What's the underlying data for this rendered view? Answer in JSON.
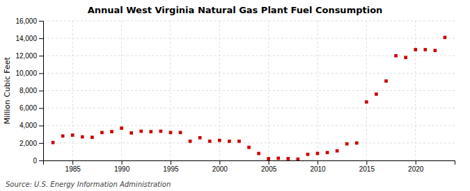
{
  "chart_data": {
    "type": "scatter",
    "title": "Annual West Virginia Natural Gas Plant Fuel Consumption",
    "ylabel": "Million Cubic Feet",
    "annotations": [
      "Source: U.S. Energy Information Administration"
    ],
    "x": [
      1983,
      1984,
      1985,
      1986,
      1987,
      1988,
      1989,
      1990,
      1991,
      1992,
      1993,
      1994,
      1995,
      1996,
      1997,
      1998,
      1999,
      2000,
      2001,
      2002,
      2003,
      2004,
      2005,
      2006,
      2007,
      2008,
      2009,
      2010,
      2011,
      2012,
      2013,
      2014,
      2015,
      2016,
      2017,
      2018,
      2019,
      2020,
      2021,
      2022,
      2023
    ],
    "values": [
      2050,
      2800,
      2900,
      2700,
      2650,
      3200,
      3300,
      3700,
      3150,
      3350,
      3300,
      3350,
      3200,
      3200,
      2200,
      2600,
      2200,
      2300,
      2200,
      2200,
      1500,
      800,
      200,
      250,
      200,
      150,
      700,
      800,
      900,
      1100,
      1900,
      2000,
      6700,
      7600,
      9100,
      12000,
      11800,
      12700,
      12700,
      12600,
      14100
    ],
    "color": "#cc0000",
    "marker": "square",
    "xlim": [
      1982,
      2024
    ],
    "xticks": [
      1985,
      1990,
      1995,
      2000,
      2005,
      2010,
      2015,
      2020
    ],
    "ylim": [
      0,
      16000
    ],
    "yticks": [
      0,
      {
        "value": 2000,
        "label": "2,000"
      },
      {
        "value": 4000,
        "label": "4,000"
      },
      {
        "value": 6000,
        "label": "6,000"
      },
      {
        "value": 8000,
        "label": "8,000"
      },
      {
        "value": 10000,
        "label": "10,000"
      },
      {
        "value": 12000,
        "label": "12,000"
      },
      {
        "value": 14000,
        "label": "14,000"
      },
      {
        "value": 16000,
        "label": "16,000"
      }
    ],
    "grid": true
  }
}
